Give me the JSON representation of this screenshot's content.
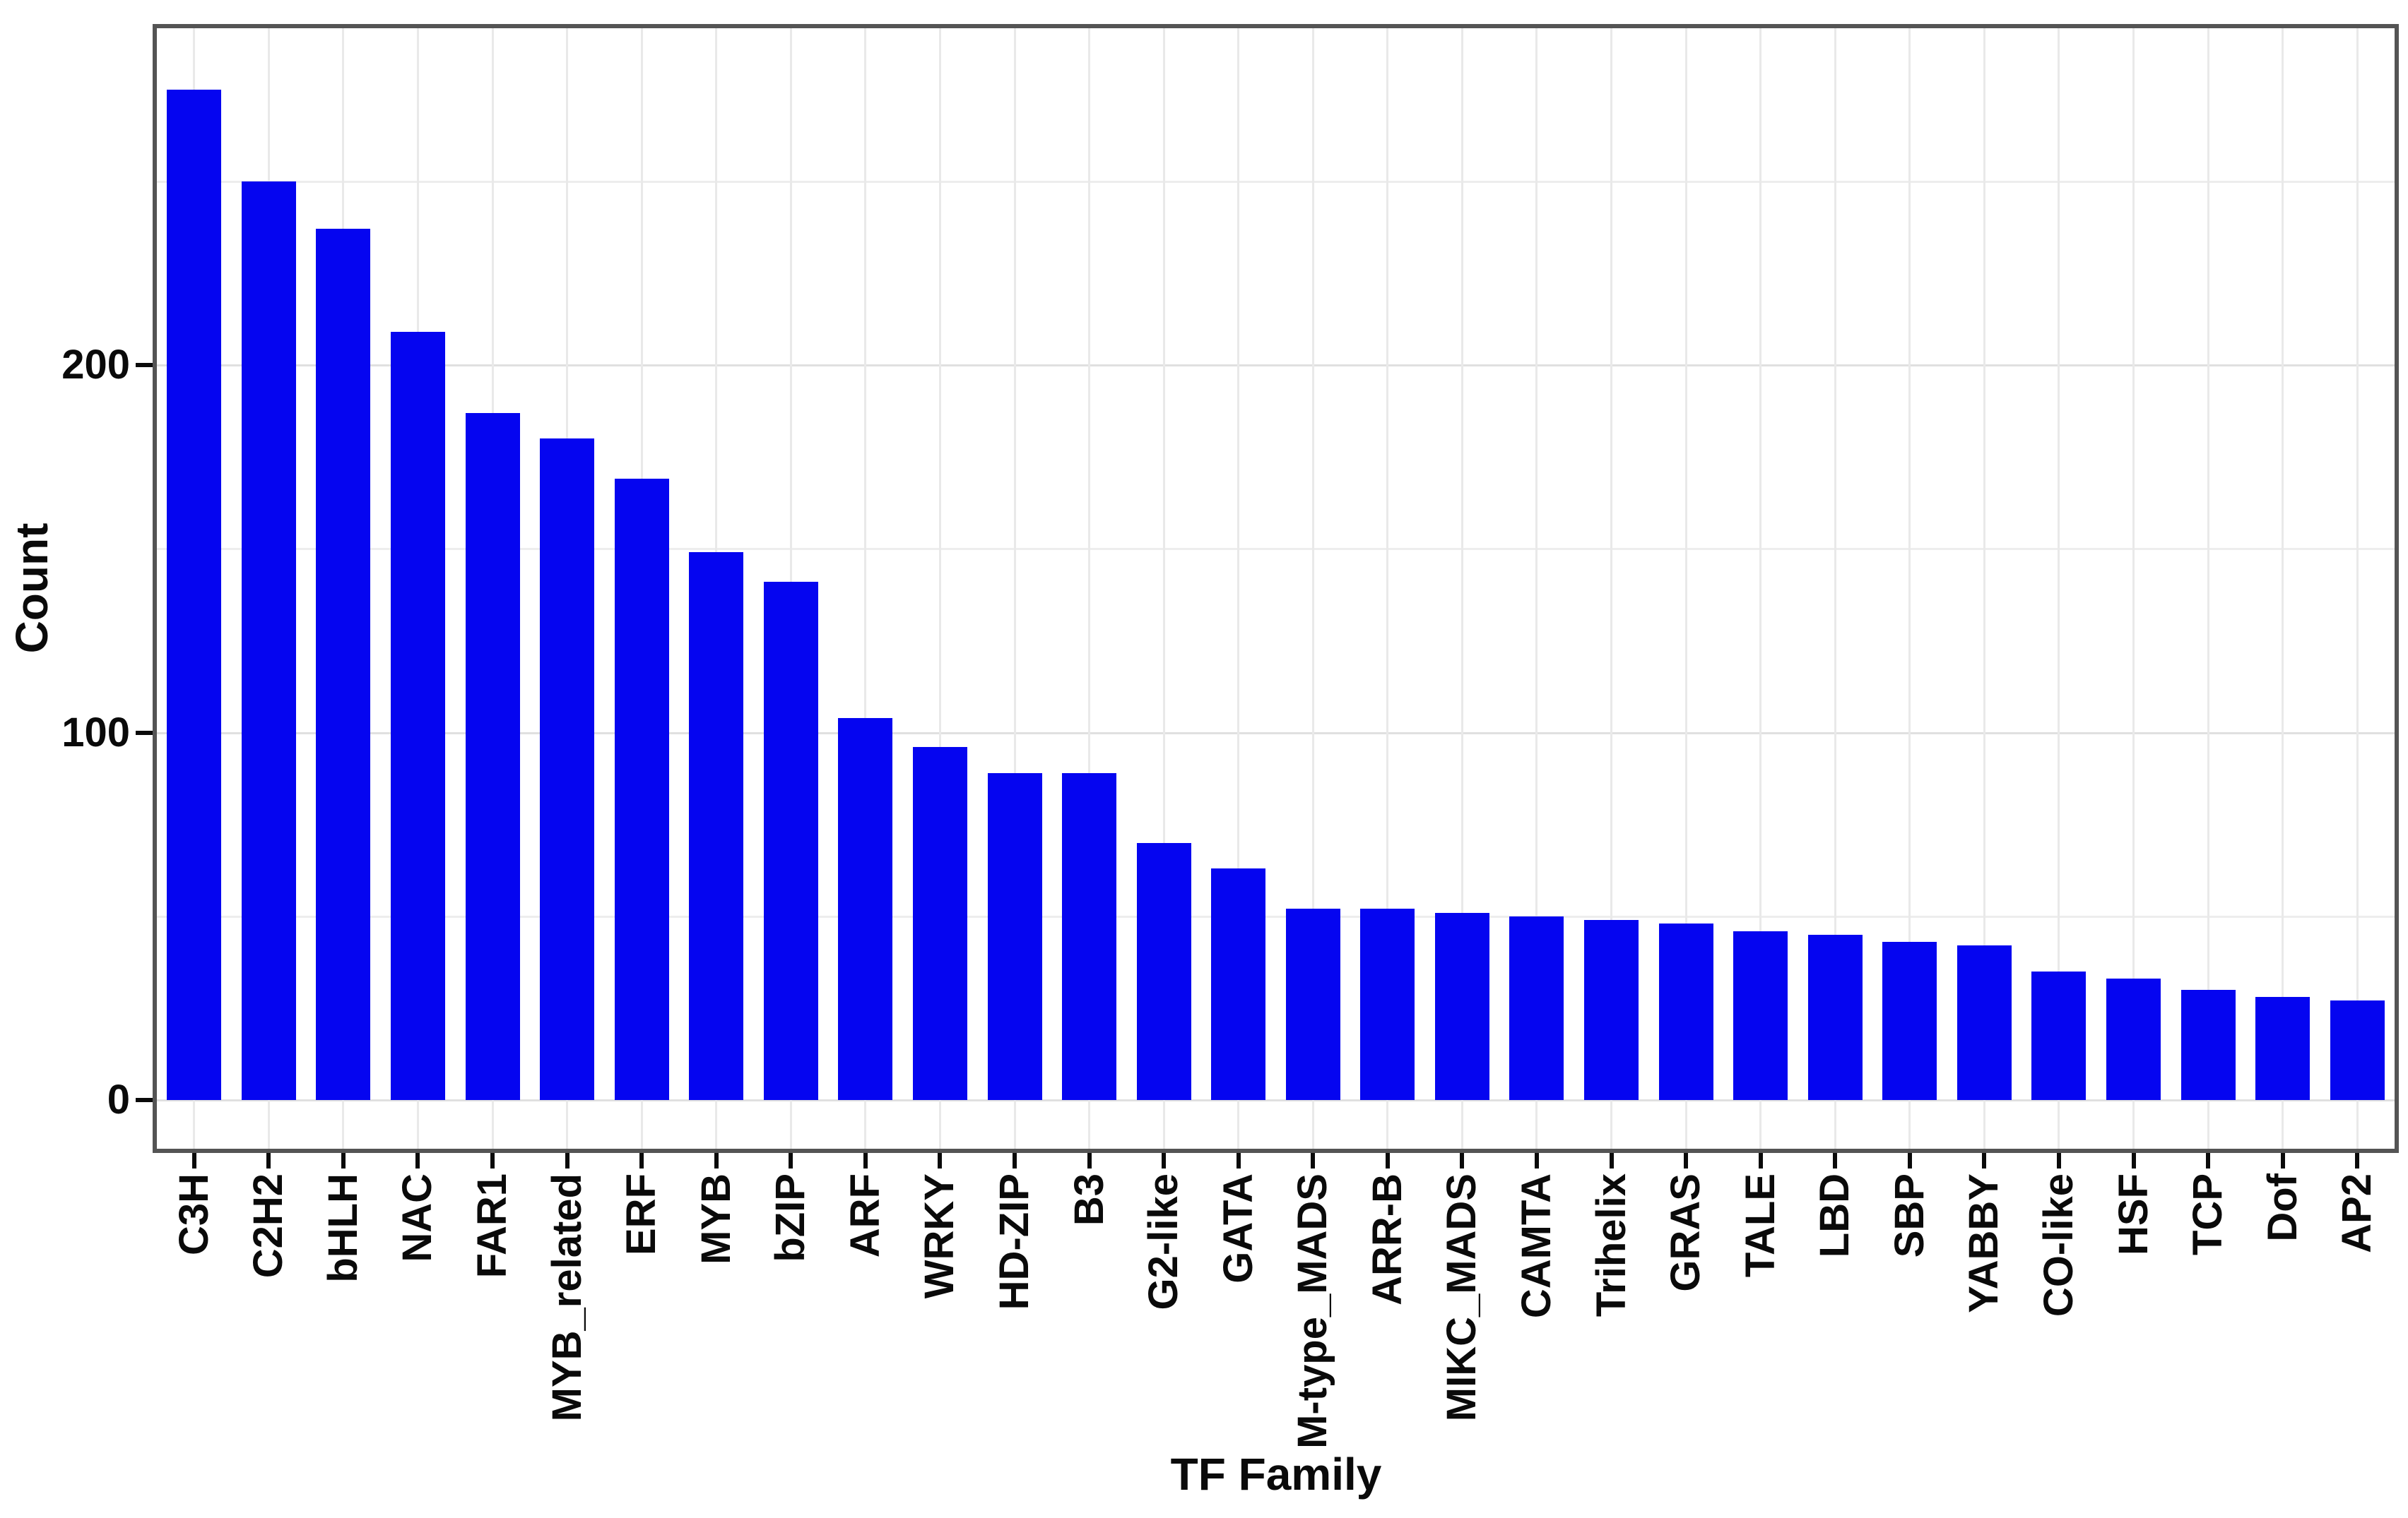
{
  "chart_data": {
    "type": "bar",
    "title": "",
    "xlabel": "TF Family",
    "ylabel": "Count",
    "categories": [
      "C3H",
      "C2H2",
      "bHLH",
      "NAC",
      "FAR1",
      "MYB_related",
      "ERF",
      "MYB",
      "bZIP",
      "ARF",
      "WRKY",
      "HD-ZIP",
      "B3",
      "G2-like",
      "GATA",
      "M-type_MADS",
      "ARR-B",
      "MIKC_MADS",
      "CAMTA",
      "Trihelix",
      "GRAS",
      "TALE",
      "LBD",
      "SBP",
      "YABBY",
      "CO-like",
      "HSF",
      "TCP",
      "Dof",
      "AP2"
    ],
    "values": [
      275,
      250,
      237,
      209,
      187,
      180,
      169,
      149,
      141,
      104,
      96,
      89,
      89,
      70,
      63,
      52,
      52,
      51,
      50,
      49,
      48,
      46,
      45,
      43,
      42,
      35,
      33,
      30,
      28,
      27
    ],
    "yticks": [
      0,
      100,
      200
    ],
    "ylim": [
      -13,
      292
    ],
    "grid": "on",
    "gridlines": {
      "major": [
        0,
        100,
        200
      ],
      "minor": [
        50,
        150,
        250
      ]
    },
    "legend": "none",
    "bar_color": "#0505f0",
    "panel_border_color": "#545454",
    "grid_major_color": "#e0e0e0",
    "grid_minor_color": "#ededed",
    "tick_color": "#0a0a0a",
    "text_color": "#0a0a0a"
  }
}
